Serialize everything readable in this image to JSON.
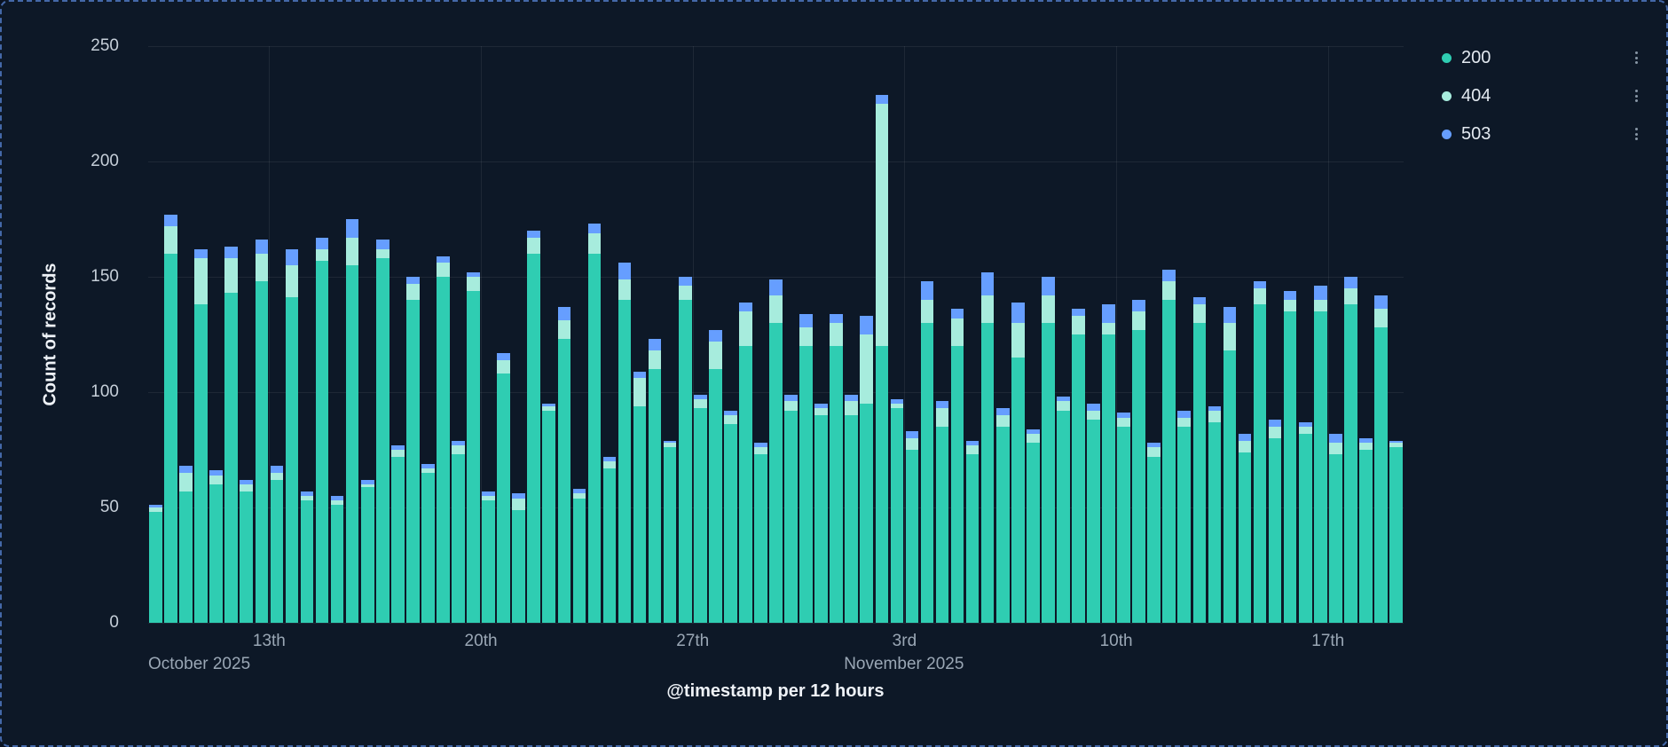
{
  "colors": {
    "background": "#0d1827",
    "panel_border": "#4468a8",
    "grid": "#26354b",
    "series_200": "#2fcdb2",
    "series_404": "#a7ecdd",
    "series_503": "#669eff"
  },
  "legend": {
    "items": [
      {
        "label": "200",
        "color": "#2fcdb2"
      },
      {
        "label": "404",
        "color": "#a7ecdd"
      },
      {
        "label": "503",
        "color": "#669eff"
      }
    ]
  },
  "chart_data": {
    "type": "bar",
    "stacked": true,
    "title": "",
    "xlabel": "@timestamp per 12 hours",
    "ylabel": "Count of records",
    "ylim": [
      0,
      250
    ],
    "y_ticks": [
      0,
      50,
      100,
      150,
      200,
      250
    ],
    "x_start": "2025-10-09 00:00",
    "interval_hours": 12,
    "x_ticks": [
      {
        "index": 8,
        "label": "13th"
      },
      {
        "index": 22,
        "label": "20th"
      },
      {
        "index": 36,
        "label": "27th"
      },
      {
        "index": 50,
        "label": "3rd"
      },
      {
        "index": 64,
        "label": "10th"
      },
      {
        "index": 78,
        "label": "17th"
      }
    ],
    "month_labels": [
      {
        "index": 0,
        "label": "October 2025"
      },
      {
        "index": 46,
        "label": "November 2025"
      }
    ],
    "series": [
      {
        "name": "200",
        "color": "#2fcdb2",
        "values": [
          48,
          160,
          57,
          138,
          60,
          143,
          57,
          148,
          62,
          141,
          53,
          157,
          51,
          155,
          59,
          158,
          72,
          140,
          65,
          150,
          73,
          144,
          53,
          108,
          49,
          160,
          92,
          123,
          54,
          160,
          67,
          140,
          94,
          110,
          76,
          140,
          93,
          110,
          86,
          120,
          73,
          130,
          92,
          120,
          90,
          120,
          90,
          95,
          120,
          93,
          75,
          130,
          85,
          120,
          73,
          130,
          85,
          115,
          78,
          130,
          92,
          125,
          88,
          125,
          85,
          127,
          72,
          140,
          85,
          130,
          87,
          118,
          74,
          138,
          80,
          135,
          82,
          135,
          73,
          138,
          75,
          128,
          76
        ]
      },
      {
        "name": "404",
        "color": "#a7ecdd",
        "values": [
          2,
          12,
          8,
          20,
          4,
          15,
          3,
          12,
          3,
          14,
          2,
          5,
          2,
          12,
          1,
          4,
          3,
          7,
          2,
          6,
          4,
          6,
          2,
          6,
          5,
          7,
          2,
          8,
          2,
          9,
          3,
          9,
          12,
          8,
          2,
          6,
          4,
          12,
          4,
          15,
          3,
          12,
          4,
          8,
          3,
          10,
          6,
          30,
          105,
          2,
          5,
          10,
          8,
          12,
          4,
          12,
          5,
          15,
          4,
          12,
          4,
          8,
          4,
          5,
          4,
          8,
          4,
          8,
          4,
          8,
          5,
          12,
          5,
          7,
          5,
          5,
          3,
          5,
          5,
          7,
          3,
          8,
          2
        ]
      },
      {
        "name": "503",
        "color": "#669eff",
        "values": [
          1,
          5,
          3,
          4,
          2,
          5,
          2,
          6,
          3,
          7,
          2,
          5,
          2,
          8,
          2,
          4,
          2,
          3,
          2,
          3,
          2,
          2,
          2,
          3,
          2,
          3,
          1,
          6,
          2,
          4,
          2,
          7,
          3,
          5,
          1,
          4,
          2,
          5,
          2,
          4,
          2,
          7,
          3,
          6,
          2,
          4,
          3,
          8,
          4,
          2,
          3,
          8,
          3,
          4,
          2,
          10,
          3,
          9,
          2,
          8,
          2,
          3,
          3,
          8,
          2,
          5,
          2,
          5,
          3,
          3,
          2,
          7,
          3,
          3,
          3,
          4,
          2,
          6,
          4,
          5,
          2,
          6,
          1
        ]
      }
    ]
  }
}
